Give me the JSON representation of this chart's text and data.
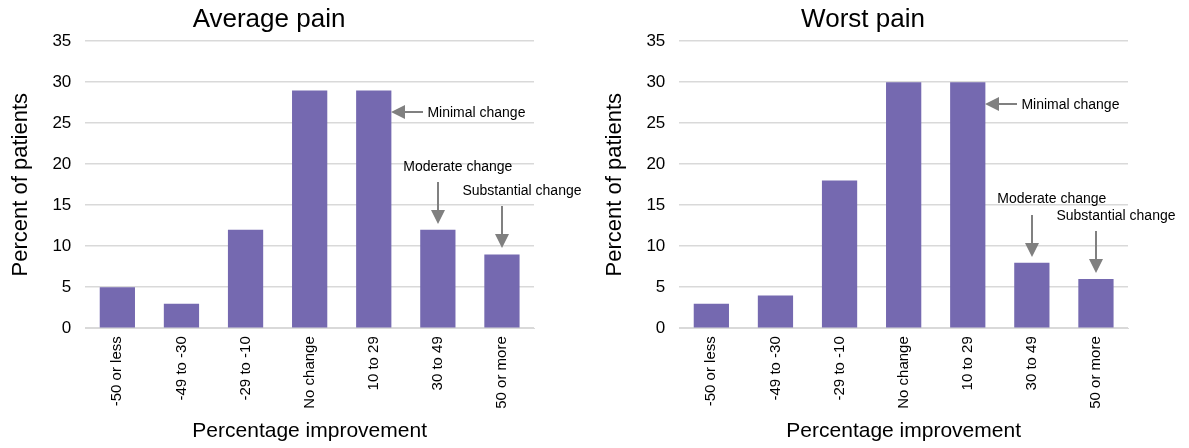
{
  "chart_data": [
    {
      "type": "bar",
      "title": "Average pain",
      "xlabel": "Percentage improvement",
      "ylabel": "Percent of patients",
      "categories": [
        "-50 or less",
        "-49 to -30",
        "-29 to -10",
        "No change",
        "10 to 29",
        "30 to 49",
        "50 or more"
      ],
      "values": [
        5,
        3,
        12,
        29,
        29,
        12,
        9
      ],
      "color": "#7569b0",
      "ylim": [
        0,
        35
      ],
      "yticks": [
        0,
        5,
        10,
        15,
        20,
        25,
        30,
        35
      ],
      "grid": "y",
      "legend": false,
      "annotations": [
        "Minimal change",
        "Moderate change",
        "Substantial change"
      ]
    },
    {
      "type": "bar",
      "title": "Worst pain",
      "xlabel": "Percentage improvement",
      "ylabel": "Percent of patients",
      "categories": [
        "-50 or less",
        "-49 to -30",
        "-29 to -10",
        "No change",
        "10 to 29",
        "30 to 49",
        "50 or more"
      ],
      "values": [
        3,
        4,
        18,
        30,
        30,
        8,
        6
      ],
      "color": "#7569b0",
      "ylim": [
        0,
        35
      ],
      "yticks": [
        0,
        5,
        10,
        15,
        20,
        25,
        30,
        35
      ],
      "grid": "y",
      "legend": false,
      "annotations": [
        "Minimal change",
        "Moderate change",
        "Substantial change"
      ]
    }
  ]
}
